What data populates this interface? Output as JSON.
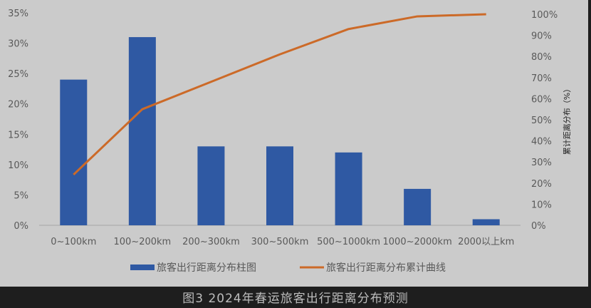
{
  "chart_data": {
    "type": "bar",
    "categories": [
      "0~100km",
      "100~200km",
      "200~300km",
      "300~500km",
      "500~1000km",
      "1000~2000km",
      "2000以上km"
    ],
    "series": [
      {
        "name": "旅客出行距离分布柱图",
        "type": "bar",
        "axis": "left",
        "values": [
          24,
          31,
          13,
          13,
          12,
          6,
          1
        ],
        "color": "#2f59a3"
      },
      {
        "name": "旅客出行距离分布累计曲线",
        "type": "line",
        "axis": "right",
        "values": [
          24,
          55,
          68,
          81,
          93,
          99,
          100
        ],
        "color": "#cc6a28"
      }
    ],
    "left_axis": {
      "ylim": [
        0,
        35
      ],
      "ticks": [
        "0%",
        "5%",
        "10%",
        "15%",
        "20%",
        "25%",
        "30%",
        "35%"
      ]
    },
    "right_axis": {
      "ylabel": "累计距离分布（%）",
      "ylim": [
        0,
        100
      ],
      "ticks": [
        "0%",
        "10%",
        "20%",
        "30%",
        "40%",
        "50%",
        "60%",
        "70%",
        "80%",
        "90%",
        "100%"
      ]
    },
    "legend": "bottom",
    "grid": false
  },
  "caption": "图3 2024年春运旅客出行距离分布预测"
}
